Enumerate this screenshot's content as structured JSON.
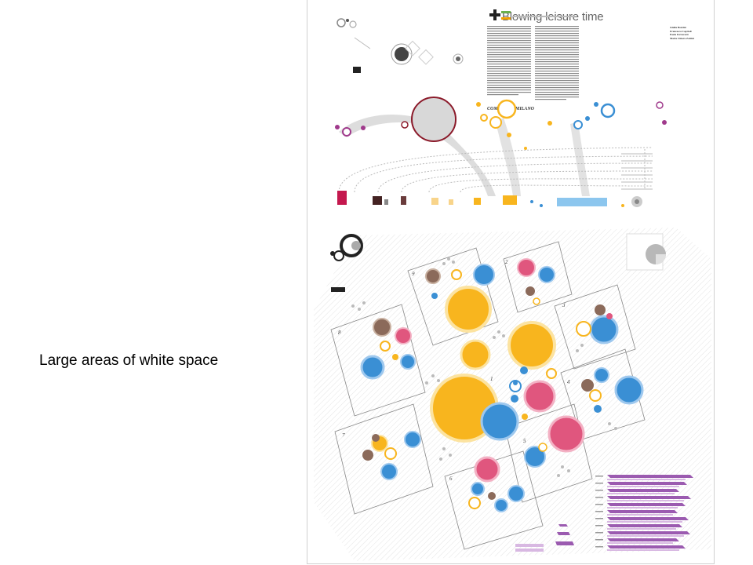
{
  "slide": {
    "caption": "Large areas of white space"
  },
  "poster": {
    "title": "Blowing leisure time",
    "subtitle": "COMUNE DI MILANO",
    "authors": [
      "Giulia Bozzini",
      "Francesca Caprioli",
      "Paola Ferrarotti",
      "Maria Chiara Zaitini"
    ],
    "zone_numbers": [
      "1",
      "2",
      "3",
      "4",
      "5",
      "6",
      "7",
      "8",
      "9"
    ],
    "colors": {
      "yellow": "#f8b51e",
      "blue": "#3a8fd4",
      "pink": "#e0567e",
      "brown": "#8b6a5a",
      "magenta": "#a03a8c",
      "purple_bar": "#9b5bb0",
      "gray": "#cfcfcf",
      "dark": "#333333"
    }
  }
}
